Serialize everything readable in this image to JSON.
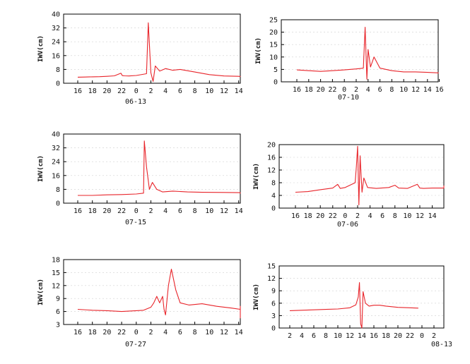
{
  "colors": {
    "series": "#e8242a",
    "axis": "#000000",
    "grid": "#d0d0d0"
  },
  "chart_data": [
    {
      "type": "line",
      "ylabel": "IWV(cm)",
      "date_label": "06-13",
      "ylim": [
        0,
        40
      ],
      "yticks": [
        "0",
        "8",
        "16",
        "24",
        "32",
        "40"
      ],
      "xticks": [
        "16",
        "18",
        "20",
        "22",
        "0",
        "2",
        "4",
        "6",
        "8",
        "10",
        "12",
        "14"
      ],
      "series": [
        {
          "x": [
            0.0,
            0.5,
            1.0,
            1.5,
            2.0,
            2.5,
            2.95,
            3.05,
            3.2,
            3.5,
            4.0,
            4.7,
            4.82,
            5.0,
            5.15,
            5.3,
            5.6,
            6.0,
            6.5,
            7.0,
            8.0,
            9.0,
            10.0,
            11.0,
            12.0,
            13.0,
            14.0
          ],
          "y": [
            3.5,
            3.6,
            3.7,
            3.8,
            4.0,
            4.3,
            5.8,
            4.4,
            4.3,
            4.2,
            4.5,
            5.5,
            35.0,
            6.0,
            1.0,
            10.0,
            7.0,
            8.5,
            7.5,
            8.0,
            6.5,
            5.0,
            4.2,
            4.0,
            3.9,
            3.8,
            3.7
          ]
        }
      ]
    },
    {
      "type": "line",
      "ylabel": "IWV(cm)",
      "date_label": "07-10",
      "ylim": [
        0,
        25
      ],
      "yticks": [
        "0",
        "5",
        "10",
        "15",
        "20",
        "25"
      ],
      "xticks": [
        "16",
        "18",
        "20",
        "22",
        "0",
        "2",
        "4",
        "6",
        "8",
        "10",
        "12",
        "14",
        "16"
      ],
      "series": [
        {
          "x": [
            0.0,
            1.0,
            2.0,
            3.0,
            4.0,
            5.0,
            5.6,
            5.75,
            5.9,
            6.0,
            6.2,
            6.5,
            7.0,
            8.0,
            9.0,
            10.0,
            11.0,
            12.0,
            13.0,
            14.0,
            15.0,
            16.0,
            16.8
          ],
          "y": [
            4.8,
            4.5,
            4.2,
            4.5,
            4.8,
            5.2,
            5.5,
            22.0,
            1.0,
            13.0,
            6.0,
            10.0,
            5.5,
            4.5,
            4.0,
            4.0,
            3.8,
            3.6,
            3.5,
            3.6,
            3.7,
            3.8,
            3.8
          ]
        }
      ]
    },
    {
      "type": "line",
      "ylabel": "IWV(cm)",
      "date_label": "07-15",
      "ylim": [
        0,
        40
      ],
      "yticks": [
        "0",
        "8",
        "16",
        "24",
        "32",
        "40"
      ],
      "xticks": [
        "16",
        "18",
        "20",
        "22",
        "0",
        "2",
        "4",
        "6",
        "8",
        "10",
        "12",
        "14"
      ],
      "series": [
        {
          "x": [
            0.0,
            1.0,
            2.0,
            3.0,
            4.0,
            4.5,
            4.55,
            4.7,
            4.9,
            5.1,
            5.4,
            5.8,
            6.5,
            7.5,
            8.5,
            10.0,
            11.0,
            12.0,
            13.0,
            14.0
          ],
          "y": [
            4.5,
            4.5,
            4.8,
            5.0,
            5.3,
            5.8,
            36.0,
            21.0,
            8.0,
            12.0,
            8.0,
            6.5,
            7.0,
            6.5,
            6.3,
            6.2,
            6.1,
            6.0,
            5.8,
            5.6
          ]
        }
      ]
    },
    {
      "type": "line",
      "ylabel": "IWV(cm)",
      "date_label": "07-06",
      "ylim": [
        0,
        20
      ],
      "yticks": [
        "0",
        "4",
        "8",
        "12",
        "16",
        "20"
      ],
      "xticks": [
        "16",
        "18",
        "20",
        "22",
        "0",
        "2",
        "4",
        "6",
        "8",
        "10",
        "12",
        "14"
      ],
      "series": [
        {
          "x": [
            0.0,
            1.0,
            2.0,
            3.0,
            3.4,
            3.6,
            4.0,
            4.8,
            4.9,
            5.0,
            5.1,
            5.2,
            5.35,
            5.5,
            5.8,
            6.5,
            7.5,
            8.0,
            8.3,
            9.0,
            9.8,
            10.0,
            10.3,
            11.0,
            12.0,
            12.9,
            13.0,
            13.2
          ],
          "y": [
            5.0,
            5.2,
            5.8,
            6.3,
            7.5,
            6.2,
            6.5,
            8.0,
            13.0,
            19.5,
            1.0,
            16.5,
            5.0,
            9.5,
            6.5,
            6.2,
            6.5,
            7.2,
            6.3,
            6.2,
            7.5,
            6.3,
            6.2,
            6.3,
            6.3,
            6.3,
            7.0,
            6.5
          ]
        }
      ]
    },
    {
      "type": "line",
      "ylabel": "IWV(cm)",
      "date_label": "07-27",
      "ylim": [
        3,
        18
      ],
      "yticks": [
        "3",
        "6",
        "9",
        "12",
        "15",
        "18"
      ],
      "xticks": [
        "16",
        "18",
        "20",
        "22",
        "0",
        "2",
        "4",
        "6",
        "8",
        "10",
        "12",
        "14"
      ],
      "series": [
        {
          "x": [
            0.0,
            1.0,
            2.0,
            3.0,
            4.0,
            4.5,
            5.0,
            5.2,
            5.4,
            5.6,
            5.8,
            5.9,
            6.0,
            6.2,
            6.4,
            6.7,
            7.0,
            7.6,
            8.5,
            9.5,
            10.5,
            11.5,
            12.0,
            12.1,
            12.2,
            12.35,
            12.5,
            12.8,
            13.2
          ],
          "y": [
            6.5,
            6.3,
            6.2,
            6.0,
            6.2,
            6.3,
            7.0,
            8.0,
            9.5,
            8.0,
            9.5,
            6.5,
            5.2,
            12.0,
            15.8,
            11.0,
            8.0,
            7.5,
            7.8,
            7.2,
            6.8,
            6.5,
            7.2,
            5.5,
            6.8,
            4.5,
            6.5,
            6.0,
            5.8
          ]
        }
      ]
    },
    {
      "type": "line",
      "ylabel": "IWV(cm)",
      "date_label": "08-13",
      "ylim": [
        0,
        15
      ],
      "yticks": [
        "0",
        "3",
        "6",
        "9",
        "12",
        "15"
      ],
      "xticks": [
        "2",
        "4",
        "6",
        "8",
        "10",
        "12",
        "14",
        "16",
        "18",
        "20",
        "22",
        "0",
        "2"
      ],
      "series": [
        {
          "x": [
            0.0,
            1.0,
            2.0,
            3.0,
            4.0,
            5.0,
            5.5,
            5.7,
            5.8,
            5.9,
            6.0,
            6.1,
            6.3,
            6.6,
            7.0,
            7.5,
            8.0,
            9.0,
            10.0,
            10.7
          ],
          "y": [
            4.2,
            4.3,
            4.4,
            4.5,
            4.6,
            4.9,
            5.6,
            7.5,
            11.0,
            1.0,
            0.0,
            8.8,
            6.0,
            5.3,
            5.5,
            5.5,
            5.3,
            5.0,
            4.9,
            4.8
          ]
        }
      ]
    }
  ]
}
